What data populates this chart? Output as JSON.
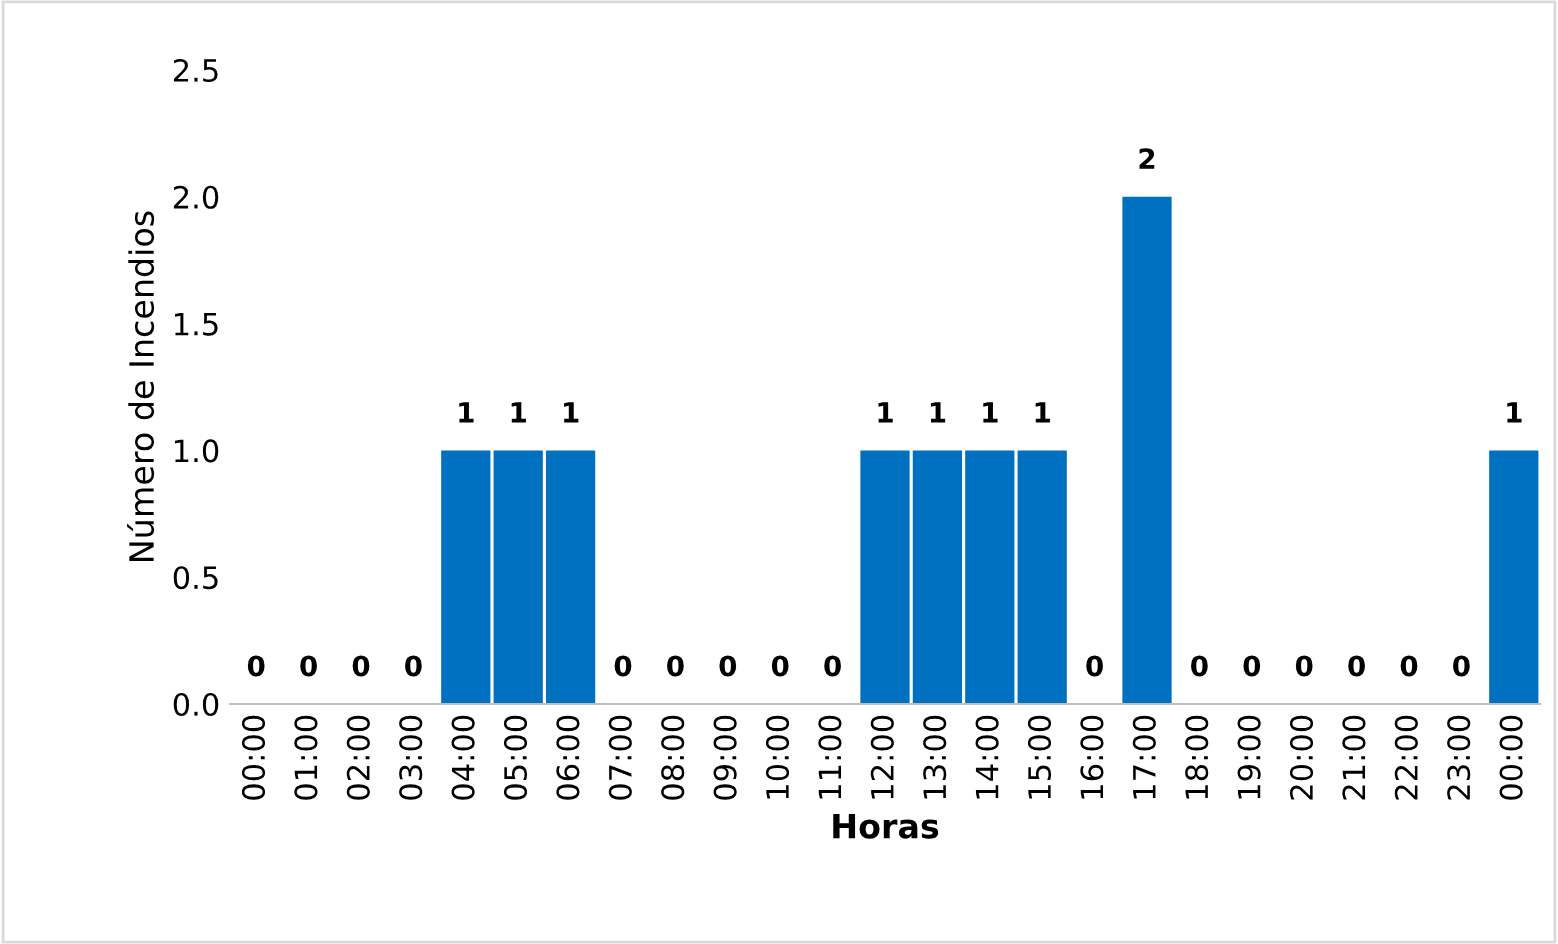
{
  "chart_data": {
    "type": "bar",
    "xlabel": "Horas",
    "ylabel": "Número de Incendios",
    "categories": [
      "00:00",
      "01:00",
      "02:00",
      "03:00",
      "04:00",
      "05:00",
      "06:00",
      "07:00",
      "08:00",
      "09:00",
      "10:00",
      "11:00",
      "12:00",
      "13:00",
      "14:00",
      "15:00",
      "16:00",
      "17:00",
      "18:00",
      "19:00",
      "20:00",
      "21:00",
      "22:00",
      "23:00",
      "00:00"
    ],
    "values": [
      0,
      0,
      0,
      0,
      1,
      1,
      1,
      0,
      0,
      0,
      0,
      0,
      1,
      1,
      1,
      1,
      0,
      2,
      0,
      0,
      0,
      0,
      0,
      0,
      1
    ],
    "color": "#0070c0",
    "ylim": [
      0,
      2.5
    ],
    "yticks": [
      {
        "value": 0,
        "label": "0.0"
      },
      {
        "value": 0.5,
        "label": "0.5"
      },
      {
        "value": 1,
        "label": "1.0"
      },
      {
        "value": 1.5,
        "label": "1.5"
      },
      {
        "value": 2,
        "label": "2.0"
      },
      {
        "value": 2.5,
        "label": "2.5"
      }
    ],
    "grid": false,
    "legend": false,
    "data_labels": true
  }
}
